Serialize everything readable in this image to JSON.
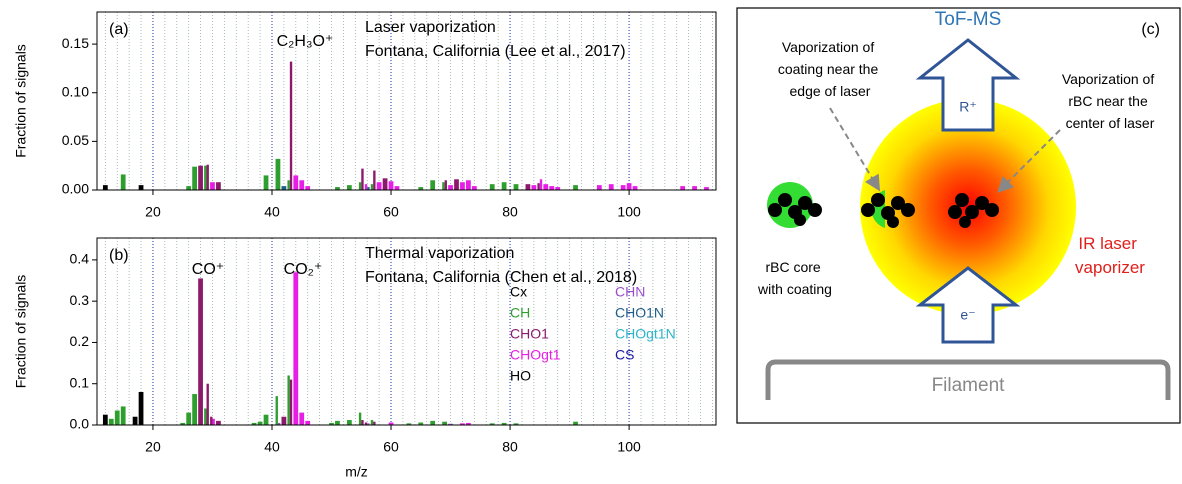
{
  "chart_data": [
    {
      "type": "bar",
      "panel_label": "(a)",
      "title": "Laser vaporization",
      "subtitle": "Fontana, California (Lee et al., 2017)",
      "annotations": [
        "C₂H₃O⁺"
      ],
      "ylabel": "Fraction of signals",
      "xlim": [
        10.6,
        114.6
      ],
      "xticks": [
        20,
        40,
        60,
        80,
        100
      ],
      "xminor": 2,
      "ylim": [
        0,
        0.183
      ],
      "yticks": [
        {
          "value": 0,
          "label": "0.00"
        },
        {
          "value": 0.05,
          "label": "0.05"
        },
        {
          "value": 0.1,
          "label": "0.10"
        },
        0.15
      ],
      "grid": true,
      "series": [
        {
          "color": "#000000",
          "x": [
            12,
            18
          ],
          "values": [
            0.005,
            0.005
          ]
        },
        {
          "color": "#2e9e2e",
          "x": [
            15,
            26,
            27,
            29,
            39,
            41,
            43,
            51,
            53,
            55,
            57,
            65,
            67,
            69,
            77,
            79,
            81,
            91
          ],
          "values": [
            0.016,
            0.004,
            0.024,
            0.025,
            0.015,
            0.032,
            0.01,
            0.003,
            0.005,
            0.008,
            0.006,
            0.003,
            0.01,
            0.008,
            0.006,
            0.008,
            0.006,
            0.005
          ]
        },
        {
          "color": "#8b1a6b",
          "x": [
            28,
            29,
            31,
            43,
            55,
            57,
            59,
            69,
            71,
            83,
            85
          ],
          "values": [
            0.025,
            0.026,
            0.008,
            0.132,
            0.022,
            0.02,
            0.012,
            0.01,
            0.011,
            0.006,
            0.007
          ]
        },
        {
          "color": "#e61ee6",
          "x": [
            30,
            44,
            45,
            46,
            56,
            58,
            60,
            61,
            70,
            72,
            73,
            74,
            84,
            85,
            86,
            87,
            88,
            95,
            97,
            99,
            100,
            101,
            109,
            111,
            113
          ],
          "values": [
            0.008,
            0.015,
            0.01,
            0.004,
            0.006,
            0.008,
            0.009,
            0.004,
            0.005,
            0.008,
            0.01,
            0.004,
            0.005,
            0.011,
            0.006,
            0.004,
            0.003,
            0.005,
            0.006,
            0.005,
            0.007,
            0.004,
            0.004,
            0.004,
            0.003
          ]
        },
        {
          "color": "#1f5f8a",
          "x": [
            42,
            56
          ],
          "values": [
            0.004,
            0.003
          ]
        }
      ]
    },
    {
      "type": "bar",
      "panel_label": "(b)",
      "title": "Thermal vaporization",
      "subtitle": "Fontana, California (Chen et al., 2018)",
      "annotations": [
        "CO⁺",
        "CO₂⁺"
      ],
      "ylabel": "Fraction of signals",
      "xlabel": "m/z",
      "xlim": [
        10.6,
        114.6
      ],
      "xticks": [
        20,
        40,
        60,
        80,
        100
      ],
      "xminor": 2,
      "ylim": [
        0,
        0.453
      ],
      "yticks": [
        {
          "value": 0,
          "label": "0.0"
        },
        0.1,
        0.2,
        0.3,
        0.4
      ],
      "grid": true,
      "series": [
        {
          "name": "Cx",
          "color": "#000000",
          "x": [
            12
          ],
          "values": [
            0.025
          ]
        },
        {
          "name": "CH",
          "color": "#2e9e2e",
          "x": [
            13,
            14,
            15,
            25,
            26,
            27,
            29,
            37,
            38,
            39,
            41,
            43,
            50,
            51,
            53,
            55,
            57,
            63,
            65,
            67,
            69,
            77,
            79,
            81,
            91
          ],
          "values": [
            0.015,
            0.035,
            0.045,
            0.005,
            0.03,
            0.075,
            0.04,
            0.005,
            0.008,
            0.025,
            0.07,
            0.12,
            0.005,
            0.01,
            0.012,
            0.03,
            0.012,
            0.004,
            0.006,
            0.01,
            0.008,
            0.004,
            0.005,
            0.004,
            0.008
          ]
        },
        {
          "name": "CHO1",
          "color": "#8b1a6b",
          "x": [
            28,
            29,
            30,
            31,
            42,
            43,
            55,
            56,
            57
          ],
          "values": [
            0.355,
            0.1,
            0.02,
            0.01,
            0.02,
            0.11,
            0.012,
            0.006,
            0.008
          ]
        },
        {
          "name": "CHOgt1",
          "color": "#e61ee6",
          "x": [
            30,
            44,
            45,
            46,
            60,
            72,
            73
          ],
          "values": [
            0.015,
            0.37,
            0.03,
            0.01,
            0.006,
            0.004,
            0.005
          ]
        },
        {
          "name": "HO",
          "color": "#000000",
          "x": [
            17,
            18
          ],
          "values": [
            0.02,
            0.08
          ]
        },
        {
          "name": "CHN",
          "color": "#9a4fd0",
          "x": [
            41,
            56,
            70
          ],
          "values": [
            0.005,
            0.004,
            0.003
          ]
        },
        {
          "name": "CHO1N",
          "color": "#1f5f8a",
          "x": [],
          "values": []
        },
        {
          "name": "CHOgt1N",
          "color": "#2ab5c8",
          "x": [],
          "values": []
        },
        {
          "name": "CS",
          "color": "#1a1aa0",
          "x": [],
          "values": []
        }
      ]
    }
  ],
  "diagram": {
    "panel_label": "(c)",
    "detector": "ToF-MS",
    "edge_label": [
      "Vaporization of",
      "coating near the",
      "edge of laser"
    ],
    "center_label": [
      "Vaporization of",
      "rBC near the",
      "center of laser"
    ],
    "ion": "R⁺",
    "electron": "e⁻",
    "particle_label": [
      "rBC core",
      "with coating"
    ],
    "laser_label": [
      "IR laser",
      "vaporizer"
    ],
    "filament": "Filament"
  }
}
